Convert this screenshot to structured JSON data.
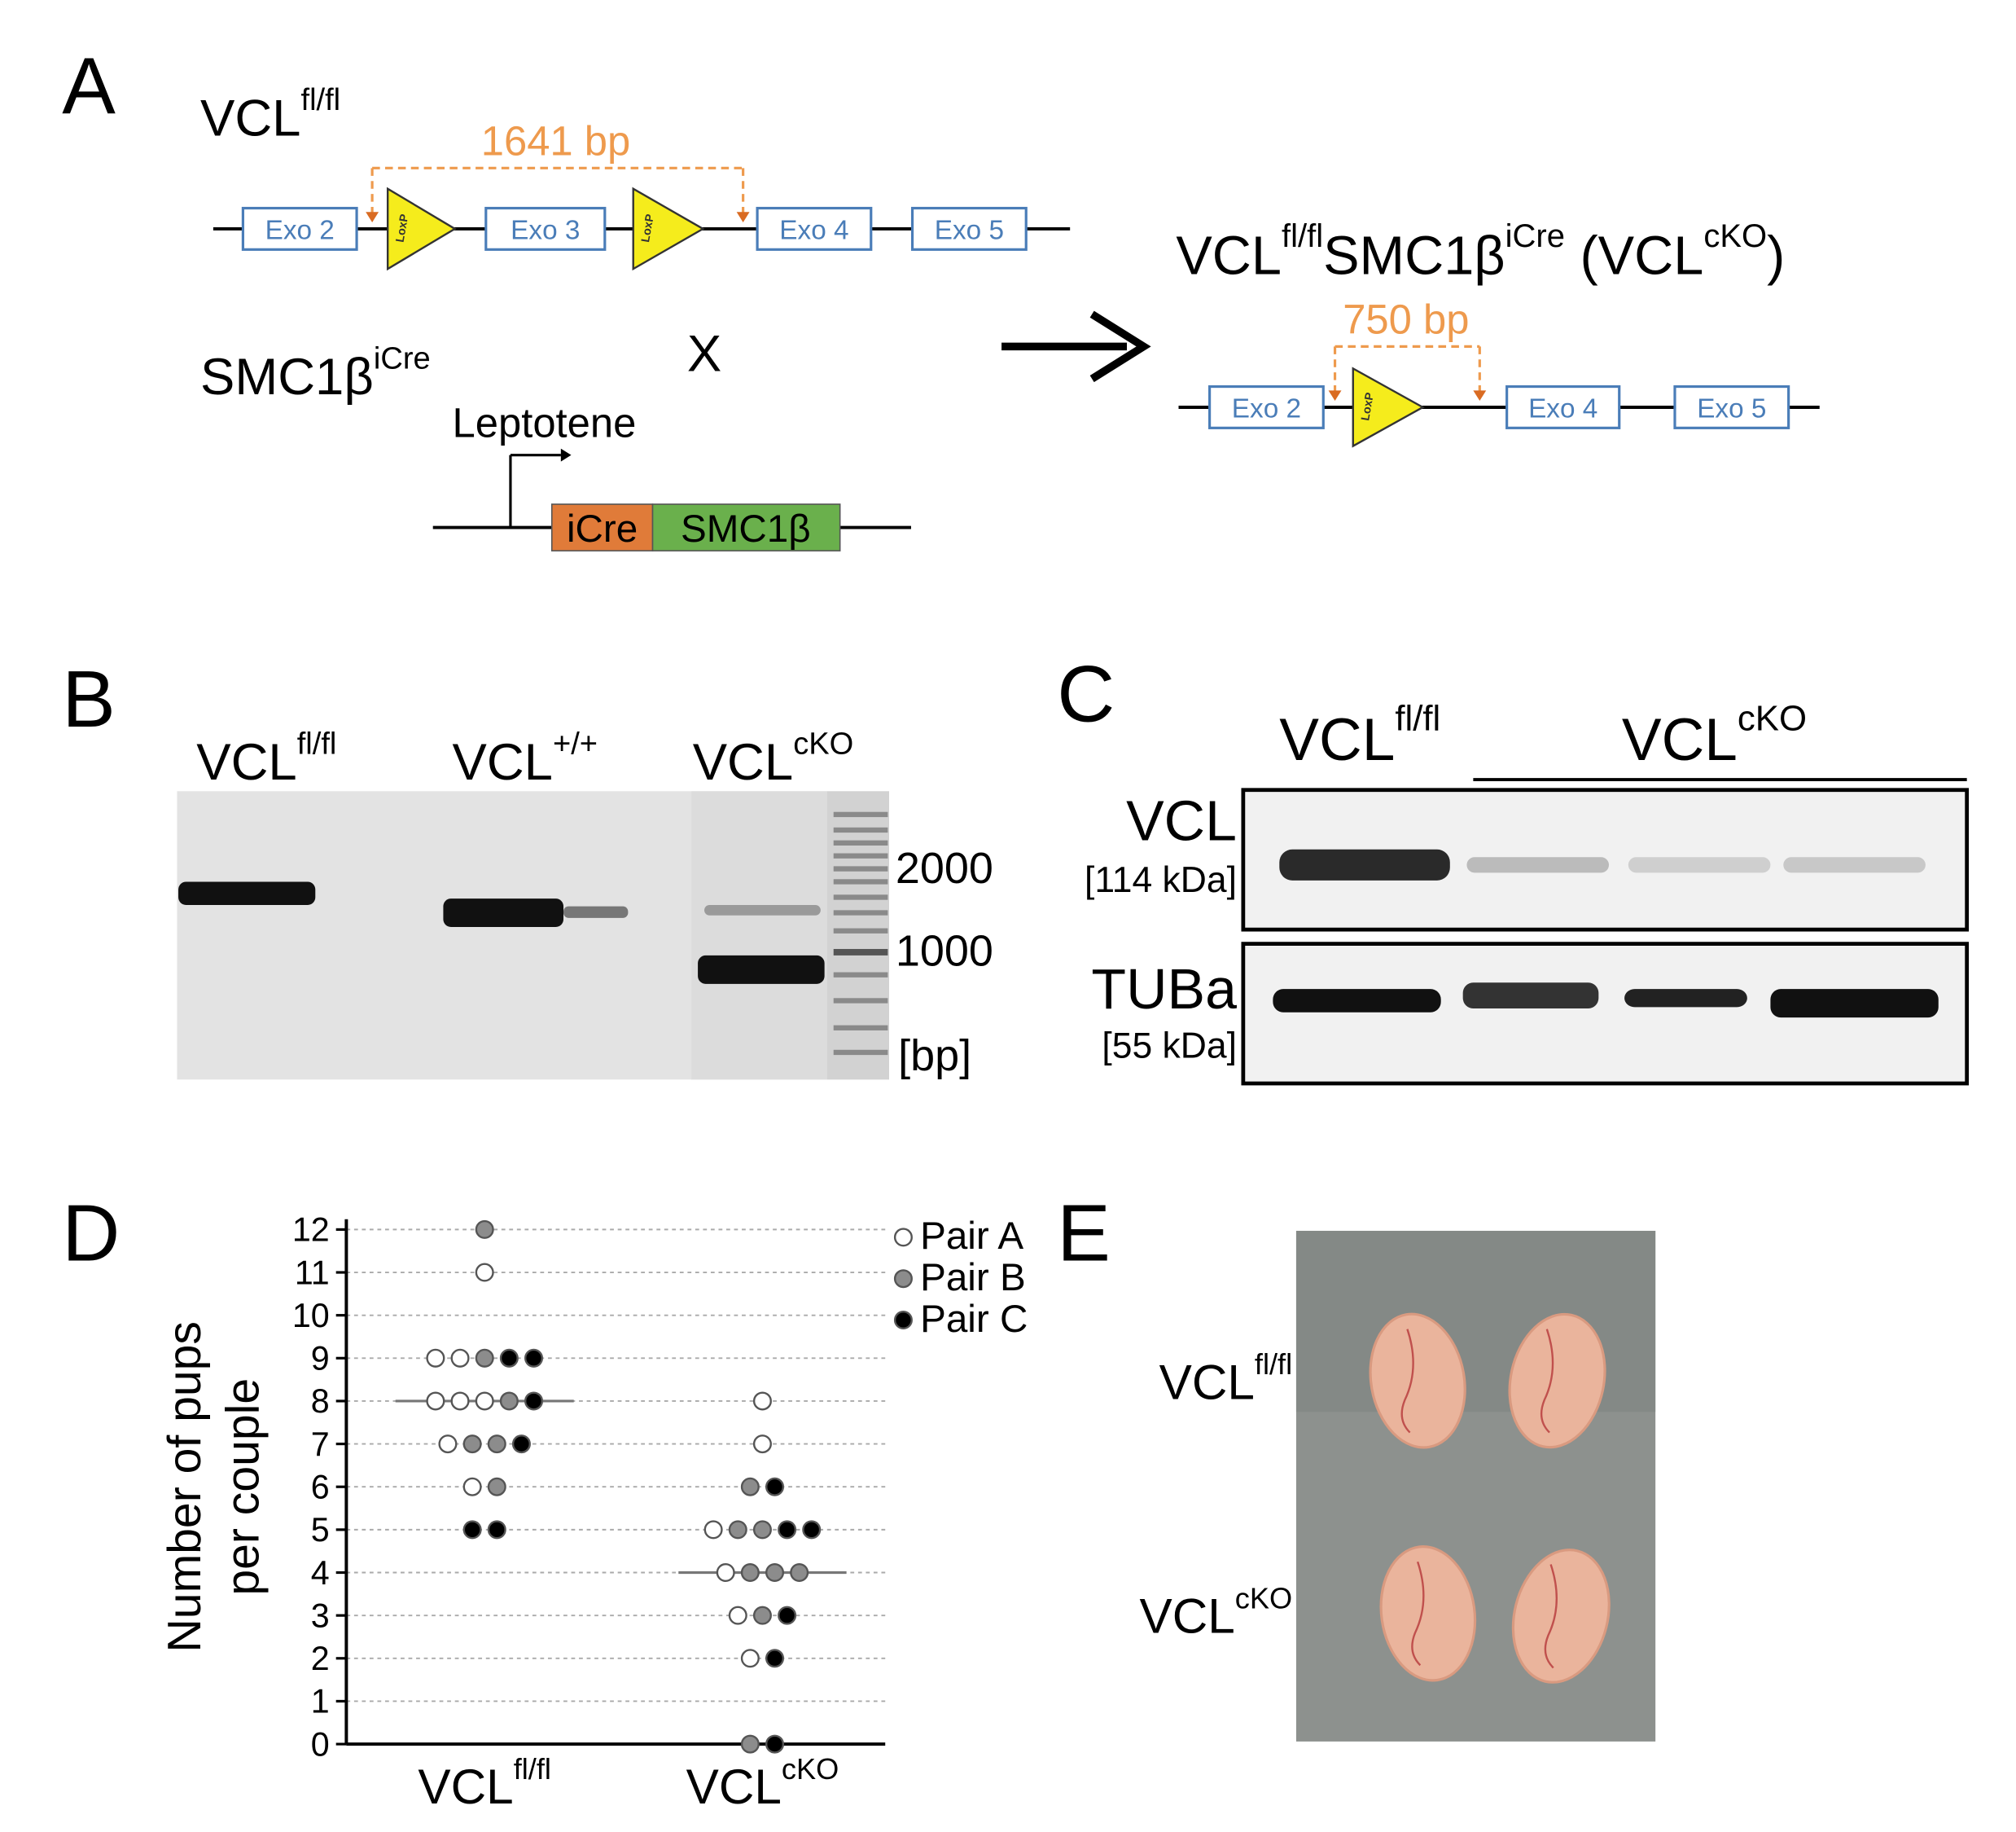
{
  "panel_a": {
    "label": "A",
    "floxed": [
      "VCL",
      "fl/fl"
    ],
    "distance_before": "1641 bp",
    "exons_before": [
      "Exo 2",
      "Exo 3",
      "Exo 4",
      "Exo 5"
    ],
    "loxp": "LoxP",
    "cre_line": [
      "SMC1β",
      "iCre"
    ],
    "cross": "X",
    "promoter": "Leptotene",
    "construct": [
      "iCre",
      "SMC1β"
    ],
    "result": [
      "VCL",
      "fl/fl",
      "SMC1β",
      "iCre",
      " (VCL",
      "cKO",
      ")"
    ],
    "distance_after": "750 bp",
    "exons_after": [
      "Exo 2",
      "Exo 4",
      "Exo 5"
    ]
  },
  "panel_b": {
    "label": "B",
    "lanes": [
      [
        "VCL",
        "fl/fl"
      ],
      [
        "VCL",
        "+/+"
      ],
      [
        "VCL",
        "cKO"
      ]
    ],
    "ladder_labels": [
      "2000",
      "1000",
      "[bp]"
    ]
  },
  "panel_c": {
    "label": "C",
    "columns": [
      [
        "VCL",
        "fl/fl"
      ],
      [
        "VCL",
        "cKO"
      ]
    ],
    "rows": [
      {
        "protein": "VCL",
        "size": "[114 kDa]"
      },
      {
        "protein": "TUBa",
        "size": "[55 kDa]"
      }
    ]
  },
  "chart_data": {
    "type": "dot",
    "label": "D",
    "ylabel": [
      "Number of pups",
      "per couple"
    ],
    "categories": [
      [
        "VCL",
        "fl/fl"
      ],
      [
        "VCL",
        "cKO"
      ]
    ],
    "series": [
      {
        "name": "Pair A",
        "color": "#ffffff",
        "values": [
          [
            11,
            9,
            9,
            8,
            8,
            8,
            7,
            6
          ],
          [
            8,
            7,
            5,
            4,
            3,
            2
          ]
        ]
      },
      {
        "name": "Pair B",
        "color": "#8c8c8c",
        "values": [
          [
            12,
            9,
            8,
            7,
            7,
            6
          ],
          [
            6,
            5,
            5,
            4,
            4,
            4,
            3,
            0
          ]
        ]
      },
      {
        "name": "Pair C",
        "color": "#000000",
        "values": [
          [
            9,
            9,
            8,
            7,
            5,
            5
          ],
          [
            6,
            5,
            5,
            3,
            2,
            0
          ]
        ]
      }
    ],
    "medians": [
      8,
      4
    ],
    "ylim": [
      0,
      12
    ],
    "yticks": [
      0,
      1,
      2,
      3,
      4,
      5,
      6,
      7,
      8,
      9,
      10,
      11,
      12
    ],
    "grid": true
  },
  "panel_e": {
    "label": "E",
    "rows": [
      [
        "VCL",
        "fl/fl"
      ],
      [
        "VCL",
        "cKO"
      ]
    ]
  }
}
